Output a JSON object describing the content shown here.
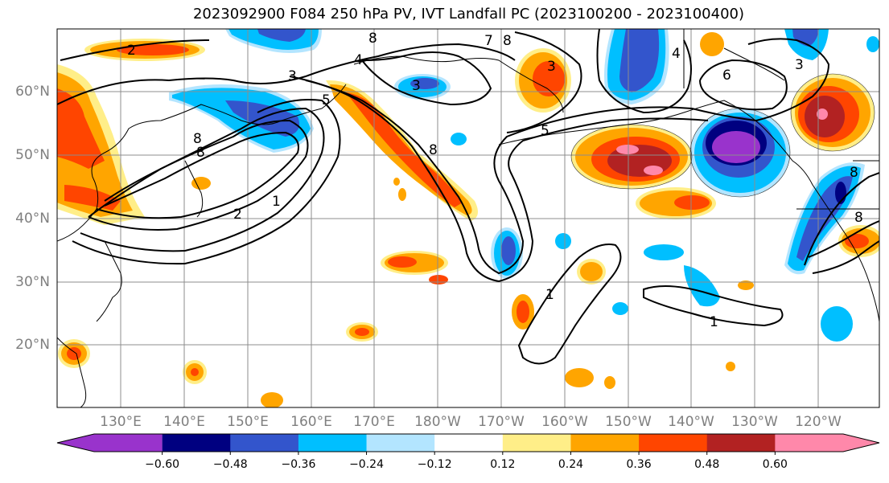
{
  "title": "2023092900 F084 250 hPa PV, IVT Landfall PC (2023100200 - 2023100400)",
  "lat_labels": [
    "60°N",
    "50°N",
    "40°N",
    "30°N",
    "20°N"
  ],
  "lon_labels": [
    "130°E",
    "140°E",
    "150°E",
    "160°E",
    "170°E",
    "180°W",
    "170°W",
    "160°W",
    "150°W",
    "140°W",
    "130°W",
    "120°W"
  ],
  "colorbar": {
    "colors": [
      "#9933cc",
      "#000080",
      "#3355cc",
      "#00bfff",
      "#b3e5ff",
      "#ffffff",
      "#ffee88",
      "#ffa500",
      "#ff4500",
      "#b22222",
      "#ff88aa"
    ],
    "tick_labels": [
      "−0.60",
      "−0.48",
      "−0.36",
      "−0.24",
      "−0.12",
      "0.12",
      "0.24",
      "0.36",
      "0.48",
      "0.60"
    ]
  },
  "contour_labels": [
    "2",
    "8",
    "4",
    "3",
    "8",
    "8",
    "7",
    "4",
    "3",
    "6",
    "3",
    "8",
    "3",
    "5",
    "8",
    "2",
    "1",
    "8",
    "1",
    "1",
    "8",
    "5"
  ]
}
